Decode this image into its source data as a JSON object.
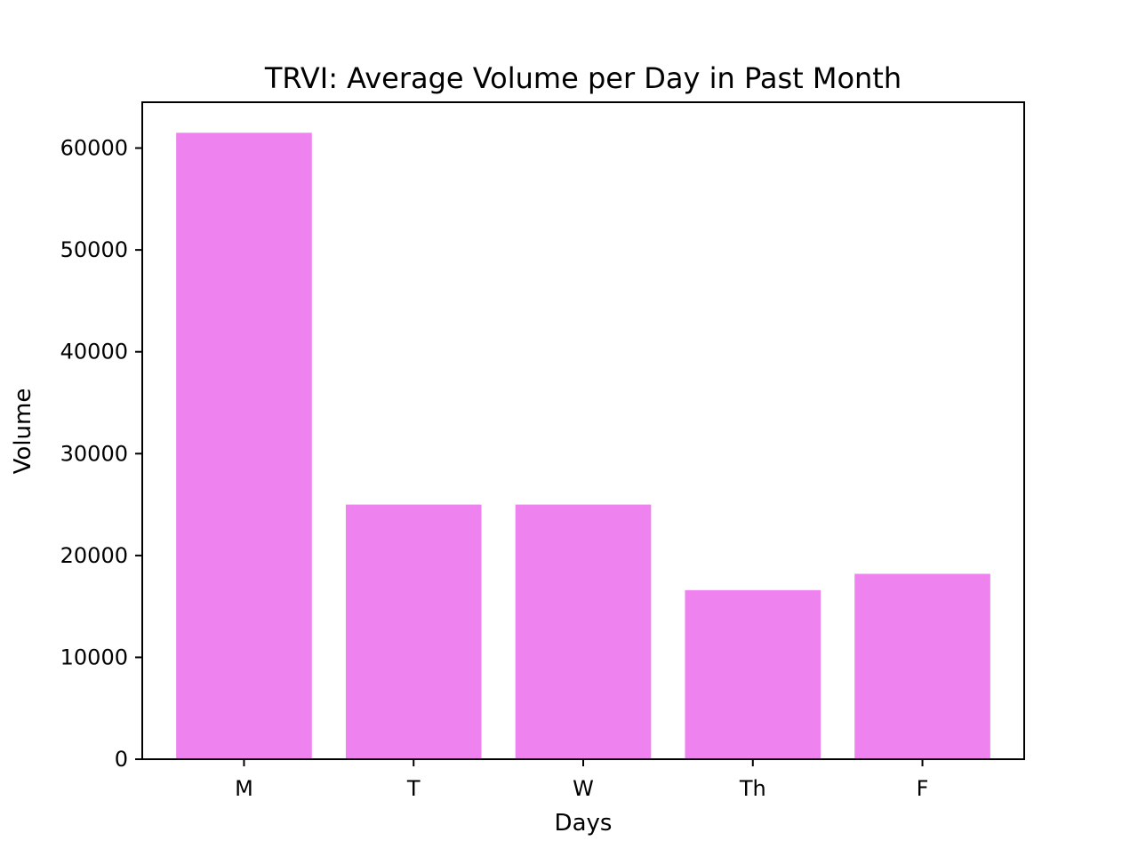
{
  "chart_data": {
    "type": "bar",
    "title": "TRVI: Average Volume per Day in Past Month",
    "xlabel": "Days",
    "ylabel": "Volume",
    "categories": [
      "M",
      "T",
      "W",
      "Th",
      "F"
    ],
    "values": [
      61500,
      25000,
      25000,
      16600,
      18200
    ],
    "ylim": [
      0,
      64500
    ],
    "yticks": [
      0,
      10000,
      20000,
      30000,
      40000,
      50000,
      60000
    ],
    "bar_color": "#ee82ee",
    "grid": false,
    "legend": false
  }
}
